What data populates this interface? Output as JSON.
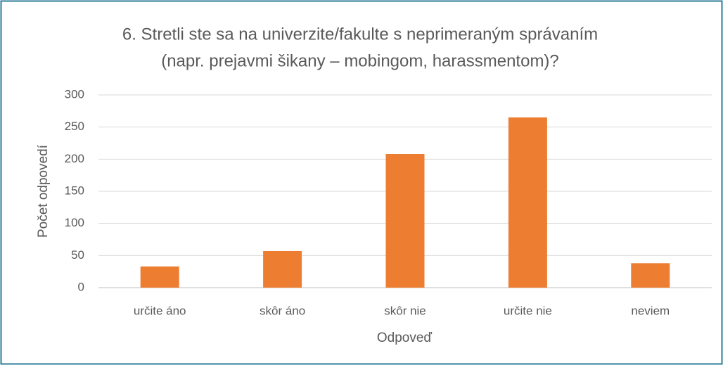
{
  "chart_data": {
    "type": "bar",
    "title": [
      "6. Stretli ste sa na univerzite/fakulte s neprimeraným správaním",
      "(napr. prejavmi šikany – mobingom, harassmentom)?"
    ],
    "x_label": "Odpoveď",
    "y_label": "Počet odpovedí",
    "categories": [
      "určite áno",
      "skôr áno",
      "skôr nie",
      "určite nie",
      "neviem"
    ],
    "values": [
      33,
      57,
      208,
      265,
      38
    ],
    "color": "#ed7d31",
    "ylim": [
      0,
      300
    ],
    "yticks": [
      0,
      50,
      100,
      150,
      200,
      250,
      300
    ],
    "grid": true
  }
}
